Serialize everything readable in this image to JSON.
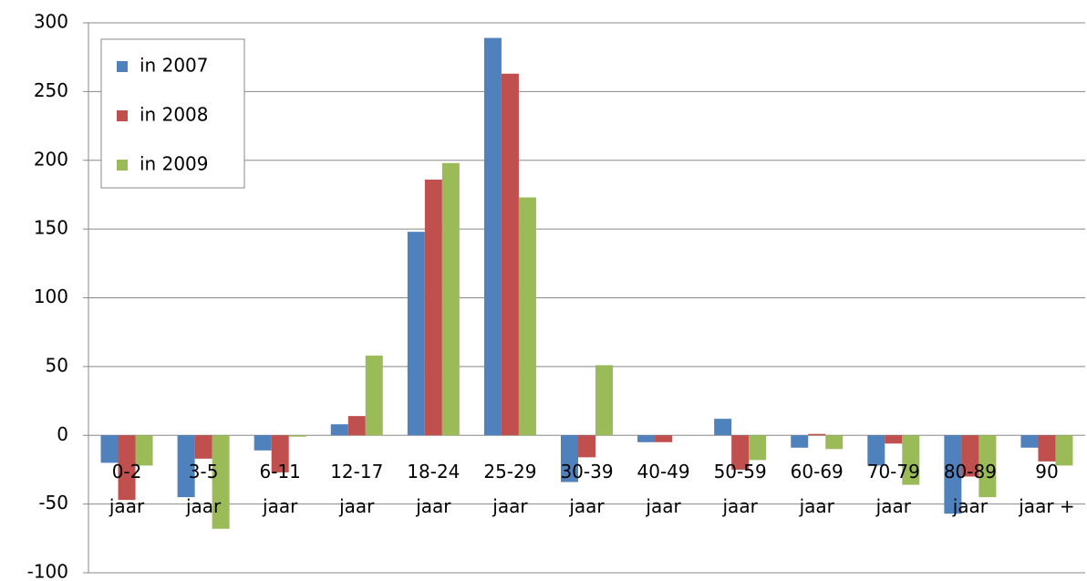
{
  "chart_data": {
    "type": "bar",
    "categories": [
      "0-2 jaar",
      "3-5 jaar",
      "6-11 jaar",
      "12-17 jaar",
      "18-24 jaar",
      "25-29 jaar",
      "30-39 jaar",
      "40-49 jaar",
      "50-59 jaar",
      "60-69 jaar",
      "70-79 jaar",
      "80-89 jaar",
      "90 jaar +"
    ],
    "series": [
      {
        "name": "in 2007",
        "color": "#4f81bd",
        "values": [
          -20,
          -45,
          -11,
          8,
          148,
          289,
          -34,
          -5,
          12,
          -9,
          -22,
          -57,
          -9
        ]
      },
      {
        "name": "in 2008",
        "color": "#c0504d",
        "values": [
          -47,
          -17,
          -27,
          14,
          186,
          263,
          -16,
          -5,
          -25,
          1,
          -6,
          -30,
          -19
        ]
      },
      {
        "name": "in 2009",
        "color": "#9bbb59",
        "values": [
          -22,
          -68,
          -1,
          58,
          198,
          173,
          51,
          0,
          -18,
          -10,
          -36,
          -45,
          -22
        ]
      }
    ],
    "ylim": [
      -100,
      300
    ],
    "yticks": [
      -100,
      -50,
      0,
      50,
      100,
      150,
      200,
      250,
      300
    ],
    "grid": true,
    "legend": "top-left"
  }
}
